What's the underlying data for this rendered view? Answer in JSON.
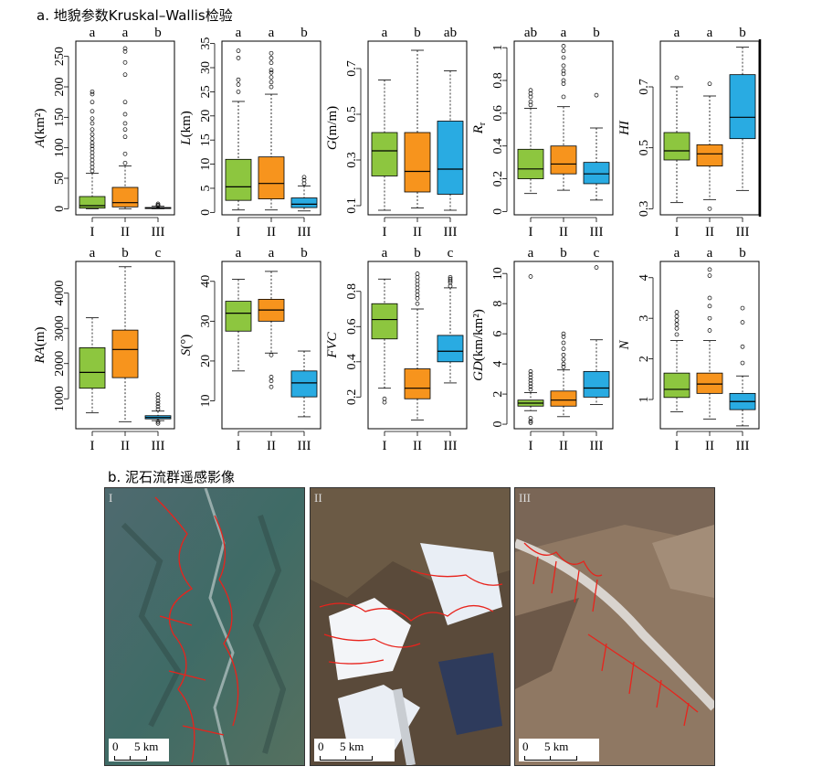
{
  "section_a_title": "a. 地貌参数Kruskal–Wallis检验",
  "section_b_title": "b. 泥石流群遥感影像",
  "colors": {
    "I": "#8DC63F",
    "II": "#F7941D",
    "III": "#29ABE2",
    "debris_outline": "#E8231C"
  },
  "chart_data": [
    {
      "type": "box",
      "ylabel": "A(km²)",
      "ylabel_italic": "A",
      "ylabel_rest": "(km²)",
      "ylim": [
        -10,
        275
      ],
      "yticks": [
        0,
        50,
        100,
        150,
        200,
        250
      ],
      "categories": [
        "I",
        "II",
        "III"
      ],
      "letters": [
        "a",
        "a",
        "b"
      ],
      "boxes": [
        {
          "min": 0,
          "q1": 1,
          "median": 5,
          "q3": 20,
          "max": 58
        },
        {
          "min": 0,
          "q1": 3,
          "median": 10,
          "q3": 35,
          "max": 70
        },
        {
          "min": 0,
          "q1": 0.3,
          "median": 1,
          "q3": 2,
          "max": 4
        }
      ],
      "outliers": [
        [
          62,
          68,
          74,
          80,
          86,
          92,
          98,
          103,
          108,
          115,
          122,
          130,
          140,
          148,
          160,
          175,
          188,
          192
        ],
        [
          75,
          90,
          118,
          130,
          140,
          155,
          175,
          220,
          240,
          258,
          263
        ],
        [
          5,
          6,
          8
        ]
      ]
    },
    {
      "type": "box",
      "ylabel": "L(km)",
      "ylabel_italic": "L",
      "ylabel_rest": "(km)",
      "ylim": [
        -0.5,
        35.5
      ],
      "yticks": [
        0,
        5,
        10,
        15,
        20,
        25,
        30,
        35
      ],
      "categories": [
        "I",
        "II",
        "III"
      ],
      "letters": [
        "a",
        "a",
        "b"
      ],
      "boxes": [
        {
          "min": 0.5,
          "q1": 2.5,
          "median": 5.3,
          "q3": 11,
          "max": 23
        },
        {
          "min": 0.5,
          "q1": 2.8,
          "median": 6,
          "q3": 11.5,
          "max": 24.5
        },
        {
          "min": 0.3,
          "q1": 1,
          "median": 1.7,
          "q3": 3,
          "max": 5.5
        }
      ],
      "outliers": [
        [
          25,
          26.5,
          27.5,
          32,
          33.5
        ],
        [
          26,
          27,
          28,
          29,
          29.5,
          31,
          32,
          33
        ],
        [
          6,
          6.7,
          7.3
        ]
      ]
    },
    {
      "type": "box",
      "ylabel": "G(m/m)",
      "ylabel_italic": "G",
      "ylabel_rest": "(m/m)",
      "ylim": [
        0.06,
        0.82
      ],
      "yticks": [
        0.1,
        0.3,
        0.5,
        0.7
      ],
      "categories": [
        "I",
        "II",
        "III"
      ],
      "letters": [
        "a",
        "b",
        "ab"
      ],
      "boxes": [
        {
          "min": 0.08,
          "q1": 0.23,
          "median": 0.34,
          "q3": 0.42,
          "max": 0.65
        },
        {
          "min": 0.09,
          "q1": 0.16,
          "median": 0.25,
          "q3": 0.42,
          "max": 0.78
        },
        {
          "min": 0.08,
          "q1": 0.15,
          "median": 0.26,
          "q3": 0.47,
          "max": 0.69
        }
      ],
      "outliers": [
        [],
        [],
        []
      ]
    },
    {
      "type": "box",
      "ylabel": "Rr",
      "ylabel_italic": "R",
      "ylabel_sub": "r",
      "ylabel_rest": "",
      "ylim": [
        -0.02,
        1.04
      ],
      "yticks": [
        0,
        0.2,
        0.4,
        0.6,
        0.8,
        1.0
      ],
      "categories": [
        "I",
        "II",
        "III"
      ],
      "letters": [
        "ab",
        "a",
        "b"
      ],
      "boxes": [
        {
          "min": 0.11,
          "q1": 0.2,
          "median": 0.26,
          "q3": 0.38,
          "max": 0.63
        },
        {
          "min": 0.13,
          "q1": 0.23,
          "median": 0.29,
          "q3": 0.4,
          "max": 0.64
        },
        {
          "min": 0.07,
          "q1": 0.17,
          "median": 0.23,
          "q3": 0.3,
          "max": 0.51
        }
      ],
      "outliers": [
        [
          0.65,
          0.67,
          0.7,
          0.72,
          0.74
        ],
        [
          0.7,
          0.78,
          0.8,
          0.84,
          0.86,
          0.89,
          0.94,
          0.98,
          1.01
        ],
        [
          0.71
        ]
      ]
    },
    {
      "type": "box",
      "ylabel": "HI",
      "ylabel_italic": "HI",
      "ylabel_rest": "",
      "ylim": [
        0.28,
        0.85
      ],
      "yticks": [
        0.3,
        0.5,
        0.7
      ],
      "categories": [
        "I",
        "II",
        "III"
      ],
      "letters": [
        "a",
        "a",
        "b"
      ],
      "boxes": [
        {
          "min": 0.32,
          "q1": 0.46,
          "median": 0.49,
          "q3": 0.55,
          "max": 0.7
        },
        {
          "min": 0.33,
          "q1": 0.44,
          "median": 0.48,
          "q3": 0.51,
          "max": 0.67
        },
        {
          "min": 0.36,
          "q1": 0.53,
          "median": 0.6,
          "q3": 0.74,
          "max": 0.83
        }
      ],
      "outliers": [
        [
          0.73
        ],
        [
          0.3,
          0.71
        ],
        []
      ]
    },
    {
      "type": "box",
      "ylabel": "RA(m)",
      "ylabel_italic": "RA",
      "ylabel_rest": "(m)",
      "ylim": [
        150,
        4900
      ],
      "yticks": [
        1000,
        2000,
        3000,
        4000
      ],
      "categories": [
        "I",
        "II",
        "III"
      ],
      "letters": [
        "a",
        "b",
        "c"
      ],
      "boxes": [
        {
          "min": 600,
          "q1": 1300,
          "median": 1750,
          "q3": 2450,
          "max": 3300
        },
        {
          "min": 350,
          "q1": 1600,
          "median": 2400,
          "q3": 2950,
          "max": 4750
        },
        {
          "min": 380,
          "q1": 430,
          "median": 470,
          "q3": 520,
          "max": 650
        }
      ],
      "outliers": [
        [],
        [],
        [
          700,
          780,
          860,
          940,
          1030,
          1120,
          350,
          300
        ]
      ]
    },
    {
      "type": "box",
      "ylabel": "S(°)",
      "ylabel_italic": "S",
      "ylabel_rest": "(°)",
      "ylim": [
        3,
        45
      ],
      "yticks": [
        10,
        20,
        30,
        40
      ],
      "categories": [
        "I",
        "II",
        "III"
      ],
      "letters": [
        "a",
        "a",
        "b"
      ],
      "boxes": [
        {
          "min": 17.5,
          "q1": 27.5,
          "median": 32,
          "q3": 35,
          "max": 40.5
        },
        {
          "min": 22,
          "q1": 30,
          "median": 32.8,
          "q3": 35.5,
          "max": 42.5
        },
        {
          "min": 6,
          "q1": 11,
          "median": 14.5,
          "q3": 17.5,
          "max": 22.5
        }
      ],
      "outliers": [
        [],
        [
          21.5,
          16,
          15,
          13.5
        ],
        []
      ]
    },
    {
      "type": "box",
      "ylabel": "FVC",
      "ylabel_italic": "FVC",
      "ylabel_rest": "",
      "ylim": [
        0.02,
        0.97
      ],
      "yticks": [
        0.2,
        0.4,
        0.6,
        0.8
      ],
      "categories": [
        "I",
        "II",
        "III"
      ],
      "letters": [
        "a",
        "b",
        "c"
      ],
      "boxes": [
        {
          "min": 0.25,
          "q1": 0.53,
          "median": 0.64,
          "q3": 0.73,
          "max": 0.87
        },
        {
          "min": 0.07,
          "q1": 0.19,
          "median": 0.25,
          "q3": 0.36,
          "max": 0.7
        },
        {
          "min": 0.28,
          "q1": 0.4,
          "median": 0.46,
          "q3": 0.55,
          "max": 0.82
        }
      ],
      "outliers": [
        [
          0.17,
          0.19
        ],
        [
          0.73,
          0.76,
          0.78,
          0.8,
          0.82,
          0.84,
          0.86,
          0.88,
          0.9
        ],
        [
          0.83,
          0.85,
          0.86,
          0.87,
          0.88
        ]
      ]
    },
    {
      "type": "box",
      "ylabel": "GD(km/km²)",
      "ylabel_italic": "GD",
      "ylabel_rest": "(km/km²)",
      "ylim": [
        -0.3,
        10.8
      ],
      "yticks": [
        0,
        2,
        4,
        6,
        8,
        10
      ],
      "categories": [
        "I",
        "II",
        "III"
      ],
      "letters": [
        "a",
        "b",
        "c"
      ],
      "boxes": [
        {
          "min": 0.9,
          "q1": 1.2,
          "median": 1.4,
          "q3": 1.6,
          "max": 2.1
        },
        {
          "min": 0.5,
          "q1": 1.2,
          "median": 1.6,
          "q3": 2.2,
          "max": 3.6
        },
        {
          "min": 1.3,
          "q1": 1.8,
          "median": 2.4,
          "q3": 3.5,
          "max": 5.6
        }
      ],
      "outliers": [
        [
          2.3,
          2.5,
          2.7,
          2.9,
          3.1,
          3.3,
          3.5,
          0.4,
          0.2,
          0.1,
          9.8
        ],
        [
          3.8,
          4.0,
          4.3,
          4.6,
          5,
          5.4,
          5.8,
          6.0
        ],
        [
          10.4
        ]
      ]
    },
    {
      "type": "box",
      "ylabel": "N",
      "ylabel_italic": "N",
      "ylabel_rest": "",
      "ylim": [
        0.28,
        4.4
      ],
      "yticks": [
        1,
        2,
        3,
        4
      ],
      "categories": [
        "I",
        "II",
        "III"
      ],
      "letters": [
        "a",
        "a",
        "b"
      ],
      "boxes": [
        {
          "min": 0.7,
          "q1": 1.05,
          "median": 1.25,
          "q3": 1.65,
          "max": 2.45
        },
        {
          "min": 0.52,
          "q1": 1.15,
          "median": 1.38,
          "q3": 1.65,
          "max": 2.45
        },
        {
          "min": 0.35,
          "q1": 0.75,
          "median": 0.95,
          "q3": 1.15,
          "max": 1.58
        }
      ],
      "outliers": [
        [
          2.6,
          2.75,
          2.85,
          2.95,
          3.05,
          3.15
        ],
        [
          2.7,
          3.0,
          3.3,
          3.5,
          4.05,
          4.2
        ],
        [
          1.9,
          2.3,
          2.9,
          3.25
        ]
      ]
    }
  ],
  "images": [
    {
      "label": "I",
      "scale_zero": "0",
      "scale_dist": "5 km"
    },
    {
      "label": "II",
      "scale_zero": "0",
      "scale_dist": "5 km"
    },
    {
      "label": "III",
      "scale_zero": "0",
      "scale_dist": "5 km"
    }
  ]
}
